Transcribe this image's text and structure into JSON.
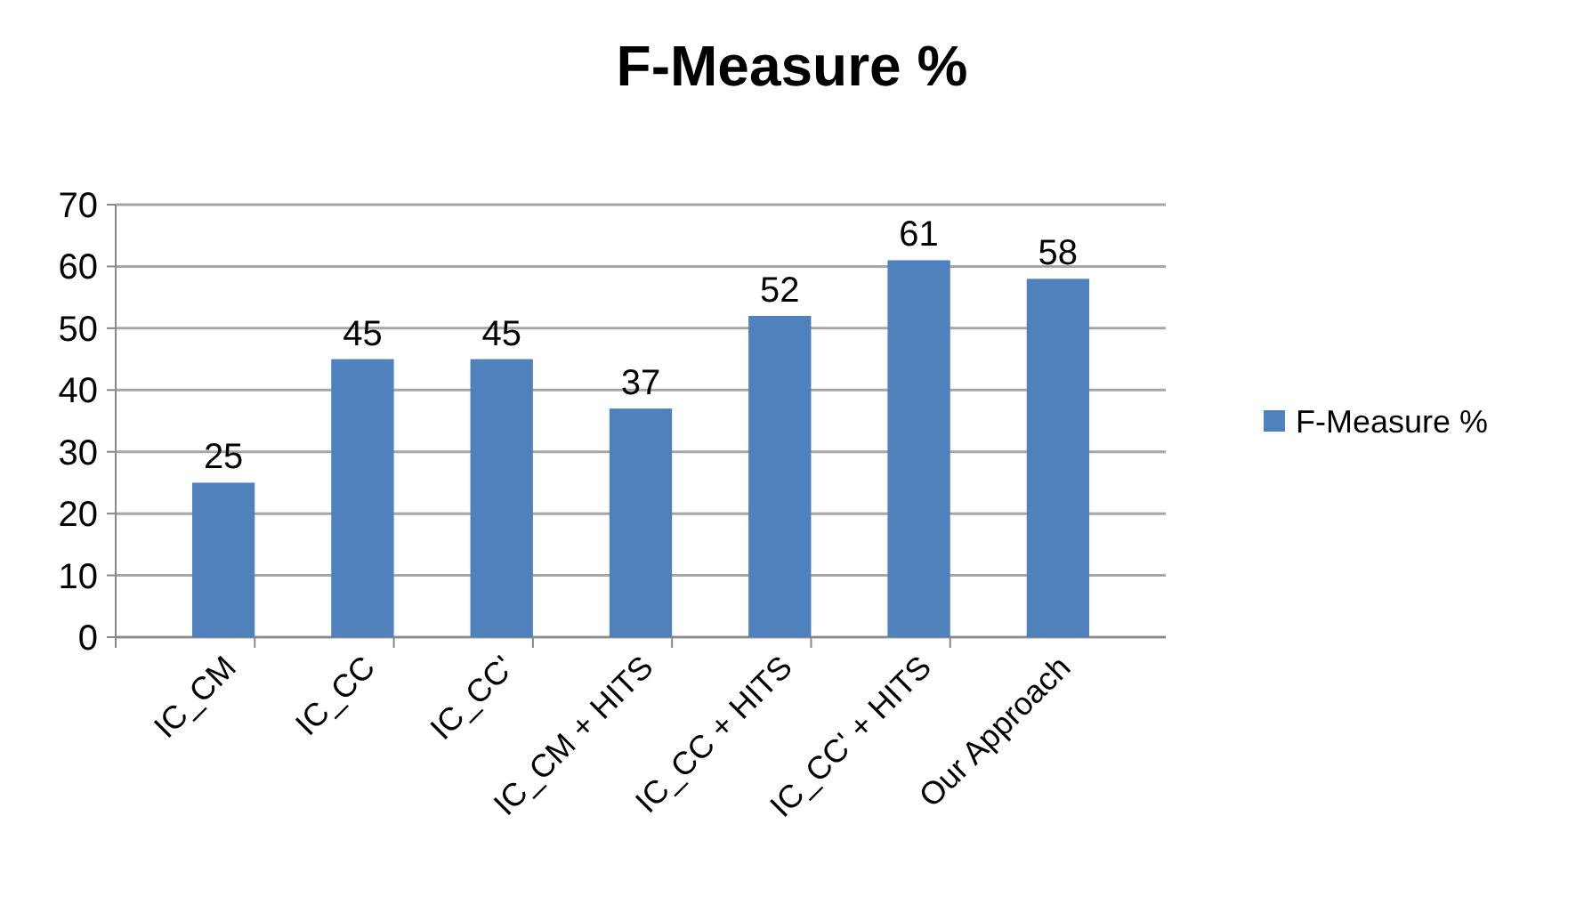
{
  "chart_data": {
    "type": "bar",
    "title": "F-Measure %",
    "categories": [
      "IC_CM",
      "IC_CC",
      "IC_CC'",
      "IC_CM + HITS",
      "IC_CC + HITS",
      "IC_CC' + HITS",
      "Our Approach"
    ],
    "series": [
      {
        "name": "F-Measure %",
        "color": "#4f81bd",
        "values": [
          25,
          45,
          45,
          37,
          52,
          61,
          58
        ]
      }
    ],
    "ylim": [
      0,
      70
    ],
    "yticks": [
      0,
      10,
      20,
      30,
      40,
      50,
      60,
      70
    ],
    "grid": "y",
    "legend": "right",
    "data_labels": true
  }
}
